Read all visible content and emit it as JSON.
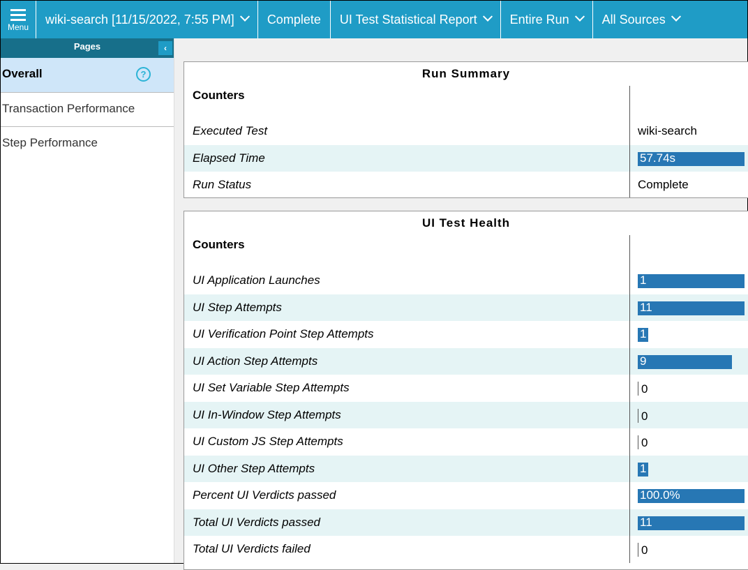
{
  "header": {
    "menu": "Menu",
    "items": [
      "wiki-search [11/15/2022, 7:55 PM]",
      "Complete",
      "UI Test Statistical Report",
      "Entire Run",
      "All Sources"
    ]
  },
  "sidebar": {
    "title": "Pages",
    "items": [
      "Overall",
      "Transaction Performance",
      "Step Performance"
    ]
  },
  "panels": [
    {
      "title": "Run Summary",
      "column_header": "Counters",
      "rows": [
        [
          "Executed Test",
          "wiki-search"
        ],
        [
          "Elapsed Time",
          "57.74s"
        ],
        [
          "Run Status",
          "Complete"
        ]
      ]
    },
    {
      "title": "UI Test Health",
      "column_header": "Counters",
      "rows": [
        [
          "UI Application Launches",
          1
        ],
        [
          "UI Step Attempts",
          11
        ],
        [
          "UI Verification Point Step Attempts",
          1
        ],
        [
          "UI Action Step Attempts",
          9
        ],
        [
          "UI Set Variable Step Attempts",
          0
        ],
        [
          "UI In-Window Step Attempts",
          0
        ],
        [
          "UI Custom JS Step Attempts",
          0
        ],
        [
          "UI Other Step Attempts",
          1
        ],
        [
          "Percent UI Verdicts passed",
          "100.0%"
        ],
        [
          "Total UI Verdicts passed",
          11
        ],
        [
          "Total UI Verdicts failed",
          0
        ]
      ]
    }
  ]
}
